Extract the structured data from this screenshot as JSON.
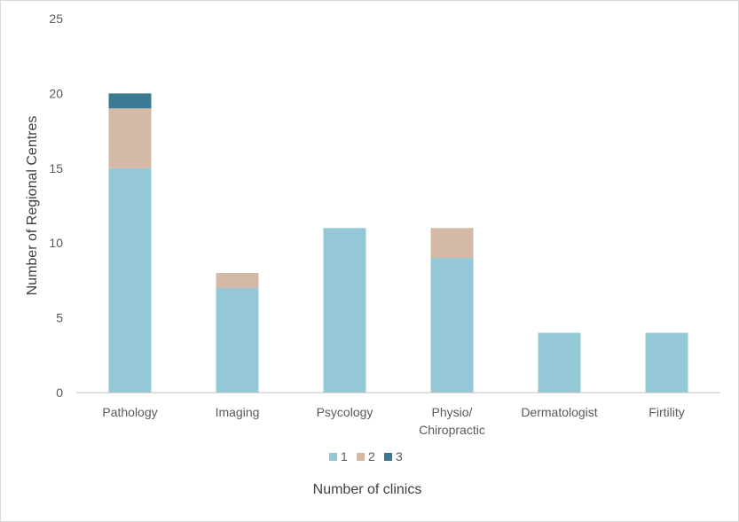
{
  "chart_data": {
    "type": "bar",
    "stacked": true,
    "categories": [
      "Pathology",
      "Imaging",
      "Psycology",
      "Physio/ Chiropractic",
      "Dermatologist",
      "Firtility"
    ],
    "category_label_lines": [
      [
        "Pathology"
      ],
      [
        "Imaging"
      ],
      [
        "Psycology"
      ],
      [
        "Physio/",
        "Chiropractic"
      ],
      [
        "Dermatologist"
      ],
      [
        "Firtility"
      ]
    ],
    "series": [
      {
        "name": "1",
        "color": "#95c8d6",
        "values": [
          15,
          7,
          11,
          9,
          4,
          4
        ]
      },
      {
        "name": "2",
        "color": "#d4b9a7",
        "values": [
          4,
          1,
          0,
          2,
          0,
          0
        ]
      },
      {
        "name": "3",
        "color": "#3a7a92",
        "values": [
          1,
          0,
          0,
          0,
          0,
          0
        ]
      }
    ],
    "title": "",
    "xlabel": "Number of clinics",
    "ylabel": "Number of Regional Centres",
    "ylim": [
      0,
      25
    ],
    "yticks": [
      0,
      5,
      10,
      15,
      20,
      25
    ],
    "grid": false,
    "legend_position": "bottom"
  }
}
